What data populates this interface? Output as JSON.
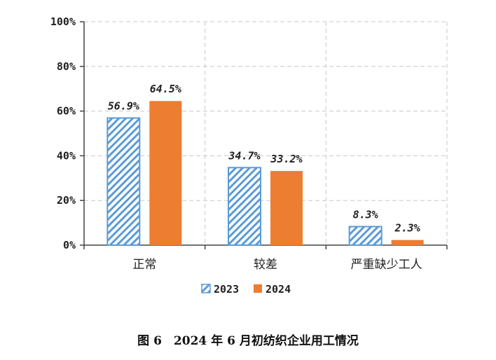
{
  "chart_data": {
    "type": "bar",
    "categories": [
      "正常",
      "较差",
      "严重缺少工人"
    ],
    "series": [
      {
        "name": "2023",
        "values": [
          56.9,
          34.7,
          8.3
        ],
        "labels": [
          "56.9%",
          "34.7%",
          "8.3%"
        ],
        "color": "#5b9bd5",
        "pattern": "diagonal-hatch"
      },
      {
        "name": "2024",
        "values": [
          64.5,
          33.2,
          2.3
        ],
        "labels": [
          "64.5%",
          "33.2%",
          "2.3%"
        ],
        "color": "#ed7d31",
        "pattern": "solid"
      }
    ],
    "ylim": [
      0,
      100
    ],
    "yticks": [
      "0%",
      "20%",
      "40%",
      "60%",
      "80%",
      "100%"
    ],
    "grid": true,
    "legend_position": "bottom",
    "caption": "图 6　2024 年 6 月初纺织企业用工情况"
  }
}
